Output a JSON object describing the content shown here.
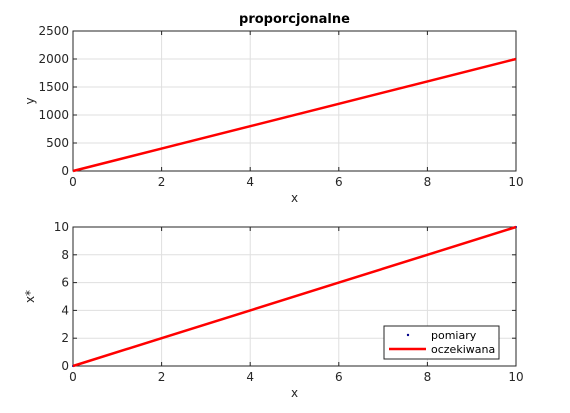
{
  "chart_data": [
    {
      "type": "line",
      "title": "proporcjonalne",
      "xlabel": "x",
      "ylabel": "y",
      "xlim": [
        0,
        10
      ],
      "ylim": [
        0,
        2500
      ],
      "xticks": [
        0,
        2,
        4,
        6,
        8,
        10
      ],
      "yticks": [
        0,
        500,
        1000,
        1500,
        2000,
        2500
      ],
      "grid": true,
      "series": [
        {
          "x": [
            0,
            2,
            4,
            6,
            8,
            10
          ],
          "y": [
            0,
            400,
            800,
            1200,
            1600,
            2000
          ],
          "color": "#ff0000",
          "style": "line"
        }
      ]
    },
    {
      "type": "line",
      "title": "",
      "xlabel": "x",
      "ylabel": "x*",
      "xlim": [
        0,
        10
      ],
      "ylim": [
        0,
        10
      ],
      "xticks": [
        0,
        2,
        4,
        6,
        8,
        10
      ],
      "yticks": [
        0,
        2,
        4,
        6,
        8,
        10
      ],
      "grid": true,
      "legend_position": "bottom-right",
      "series": [
        {
          "name": "pomiary",
          "x": [
            0,
            2,
            4,
            6,
            8,
            10
          ],
          "y": [
            0,
            2,
            4,
            6,
            8,
            10
          ],
          "color": "#00008b",
          "style": "points"
        },
        {
          "name": "oczekiwana",
          "x": [
            0,
            2,
            4,
            6,
            8,
            10
          ],
          "y": [
            0,
            2,
            4,
            6,
            8,
            10
          ],
          "color": "#ff0000",
          "style": "line"
        }
      ]
    }
  ]
}
